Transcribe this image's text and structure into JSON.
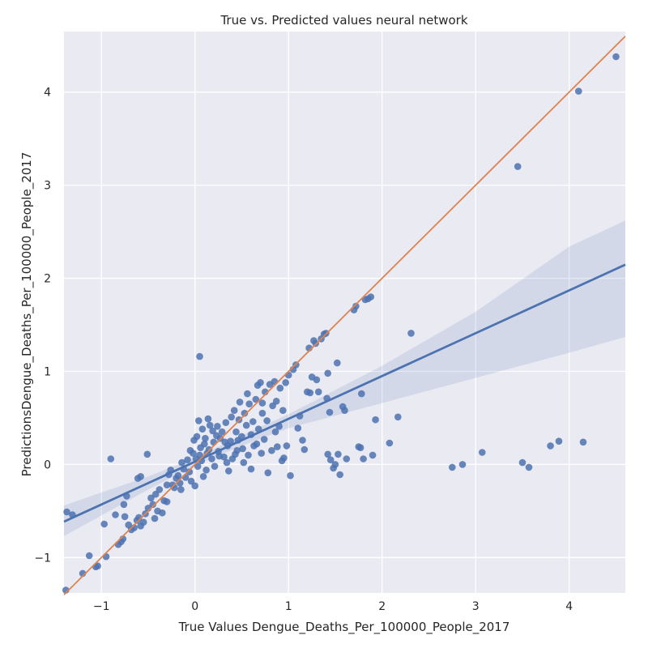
{
  "chart_data": {
    "type": "scatter",
    "title": "True vs. Predicted values neural network",
    "xlabel": "True Values Dengue_Deaths_Per_100000_People_2017",
    "ylabel": "PredictionsDengue_Deaths_Per_100000_People_2017",
    "xlim": [
      -1.4,
      4.6
    ],
    "ylim": [
      -1.38,
      4.65
    ],
    "x_ticks": [
      -1,
      0,
      1,
      2,
      3,
      4
    ],
    "y_ticks": [
      -1,
      0,
      1,
      2,
      3,
      4
    ],
    "x_tick_labels": [
      "−1",
      "0",
      "1",
      "2",
      "3",
      "4"
    ],
    "y_tick_labels": [
      "−1",
      "0",
      "1",
      "2",
      "3",
      "4"
    ],
    "grid": true,
    "background": "#eaeaf2",
    "colors": {
      "points": "#4c72b0",
      "regression": "#4c72b0",
      "ci_band": "#4c72b0",
      "identity": "#dd8452"
    },
    "regression": {
      "slope": 0.46,
      "intercept": 0.03
    },
    "confidence_band": {
      "x": [
        -1.4,
        -0.5,
        0,
        0.5,
        1,
        2,
        3,
        4,
        4.6
      ],
      "lower": [
        -0.77,
        -0.27,
        -0.01,
        0.2,
        0.39,
        0.66,
        0.93,
        1.2,
        1.37
      ],
      "upper": [
        -0.44,
        -0.13,
        0.07,
        0.31,
        0.54,
        1.06,
        1.64,
        2.34,
        2.62
      ]
    },
    "identity_line": [
      [
        -1.4,
        -1.4
      ],
      [
        4.6,
        4.6
      ]
    ],
    "points": [
      [
        -1.38,
        -1.35
      ],
      [
        -1.37,
        -0.51
      ],
      [
        -1.31,
        -0.54
      ],
      [
        -1.2,
        -1.17
      ],
      [
        -1.13,
        -0.98
      ],
      [
        -1.06,
        -1.1
      ],
      [
        -1.04,
        -1.09
      ],
      [
        -0.97,
        -0.64
      ],
      [
        -0.95,
        -0.99
      ],
      [
        -0.9,
        0.06
      ],
      [
        -0.85,
        -0.54
      ],
      [
        -0.82,
        -0.86
      ],
      [
        -0.79,
        -0.83
      ],
      [
        -0.77,
        -0.8
      ],
      [
        -0.76,
        -0.43
      ],
      [
        -0.73,
        -0.34
      ],
      [
        -0.75,
        -0.56
      ],
      [
        -0.71,
        -0.65
      ],
      [
        -0.68,
        -0.7
      ],
      [
        -0.65,
        -0.68
      ],
      [
        -0.62,
        -0.6
      ],
      [
        -0.6,
        -0.57
      ],
      [
        -0.58,
        -0.66
      ],
      [
        -0.55,
        -0.62
      ],
      [
        -0.53,
        -0.53
      ],
      [
        -0.61,
        -0.15
      ],
      [
        -0.58,
        -0.13
      ],
      [
        -0.51,
        0.11
      ],
      [
        -0.5,
        -0.47
      ],
      [
        -0.47,
        -0.36
      ],
      [
        -0.45,
        -0.43
      ],
      [
        -0.42,
        -0.32
      ],
      [
        -0.4,
        -0.5
      ],
      [
        -0.38,
        -0.27
      ],
      [
        -0.35,
        -0.52
      ],
      [
        -0.33,
        -0.39
      ],
      [
        -0.3,
        -0.22
      ],
      [
        -0.28,
        -0.11
      ],
      [
        -0.26,
        -0.06
      ],
      [
        -0.24,
        -0.22
      ],
      [
        -0.22,
        -0.25
      ],
      [
        -0.2,
        -0.15
      ],
      [
        -0.18,
        -0.12
      ],
      [
        -0.16,
        -0.2
      ],
      [
        -0.14,
        0.02
      ],
      [
        -0.12,
        -0.05
      ],
      [
        -0.1,
        -0.14
      ],
      [
        -0.08,
        0.05
      ],
      [
        -0.06,
        -0.08
      ],
      [
        -0.05,
        0.15
      ],
      [
        -0.04,
        -0.18
      ],
      [
        -0.02,
        0.12
      ],
      [
        -0.01,
        0.26
      ],
      [
        0.0,
        -0.23
      ],
      [
        0.01,
        0.06
      ],
      [
        0.02,
        0.3
      ],
      [
        0.03,
        -0.02
      ],
      [
        0.04,
        0.47
      ],
      [
        0.05,
        0.1
      ],
      [
        0.06,
        0.18
      ],
      [
        0.07,
        0.04
      ],
      [
        0.08,
        0.38
      ],
      [
        0.1,
        0.22
      ],
      [
        0.12,
        -0.06
      ],
      [
        0.13,
        0.12
      ],
      [
        0.15,
        0.16
      ],
      [
        0.16,
        0.42
      ],
      [
        0.18,
        0.06
      ],
      [
        0.2,
        0.24
      ],
      [
        0.21,
        -0.02
      ],
      [
        0.23,
        0.31
      ],
      [
        0.25,
        0.14
      ],
      [
        0.27,
        0.28
      ],
      [
        0.29,
        0.35
      ],
      [
        0.31,
        0.08
      ],
      [
        0.33,
        0.45
      ],
      [
        0.35,
        0.2
      ],
      [
        0.36,
        -0.07
      ],
      [
        0.38,
        0.25
      ],
      [
        0.4,
        0.06
      ],
      [
        0.42,
        0.58
      ],
      [
        0.44,
        0.35
      ],
      [
        0.45,
        0.15
      ],
      [
        0.47,
        0.48
      ],
      [
        0.48,
        0.67
      ],
      [
        0.5,
        0.3
      ],
      [
        0.52,
        0.02
      ],
      [
        0.53,
        0.55
      ],
      [
        0.55,
        0.42
      ],
      [
        0.57,
        0.1
      ],
      [
        0.58,
        0.65
      ],
      [
        0.6,
        0.32
      ],
      [
        0.62,
        0.46
      ],
      [
        0.63,
        0.2
      ],
      [
        0.65,
        0.7
      ],
      [
        0.67,
        0.85
      ],
      [
        0.68,
        0.38
      ],
      [
        0.7,
        0.88
      ],
      [
        0.71,
        0.12
      ],
      [
        0.72,
        0.55
      ],
      [
        0.74,
        0.27
      ],
      [
        0.75,
        0.78
      ],
      [
        0.77,
        0.47
      ],
      [
        0.78,
        -0.09
      ],
      [
        0.8,
        0.86
      ],
      [
        0.82,
        0.15
      ],
      [
        0.83,
        0.63
      ],
      [
        0.85,
        0.89
      ],
      [
        0.86,
        0.35
      ],
      [
        0.88,
        0.19
      ],
      [
        0.9,
        0.41
      ],
      [
        0.91,
        0.82
      ],
      [
        0.93,
        0.04
      ],
      [
        0.94,
        0.58
      ],
      [
        0.95,
        0.07
      ],
      [
        0.97,
        0.88
      ],
      [
        1.0,
        0.96
      ],
      [
        0.98,
        0.2
      ],
      [
        1.02,
        -0.12
      ],
      [
        1.05,
        1.02
      ],
      [
        1.08,
        1.07
      ],
      [
        1.1,
        0.39
      ],
      [
        1.12,
        0.52
      ],
      [
        1.15,
        0.26
      ],
      [
        1.17,
        0.16
      ],
      [
        1.2,
        0.78
      ],
      [
        1.22,
        1.25
      ],
      [
        1.23,
        0.77
      ],
      [
        1.25,
        0.94
      ],
      [
        1.27,
        1.33
      ],
      [
        1.29,
        1.3
      ],
      [
        1.3,
        0.91
      ],
      [
        1.32,
        0.78
      ],
      [
        1.35,
        1.35
      ],
      [
        1.38,
        1.4
      ],
      [
        1.4,
        1.41
      ],
      [
        1.41,
        0.71
      ],
      [
        1.42,
        0.98
      ],
      [
        1.44,
        0.56
      ],
      [
        1.42,
        0.11
      ],
      [
        1.45,
        0.05
      ],
      [
        1.48,
        -0.04
      ],
      [
        1.5,
        0.0
      ],
      [
        1.52,
        1.09
      ],
      [
        1.53,
        0.11
      ],
      [
        1.55,
        -0.11
      ],
      [
        1.58,
        0.62
      ],
      [
        1.6,
        0.58
      ],
      [
        1.62,
        0.06
      ],
      [
        1.7,
        1.66
      ],
      [
        1.72,
        1.7
      ],
      [
        1.75,
        0.19
      ],
      [
        1.77,
        0.18
      ],
      [
        1.78,
        0.76
      ],
      [
        1.8,
        0.06
      ],
      [
        1.82,
        1.77
      ],
      [
        1.85,
        1.78
      ],
      [
        1.88,
        1.8
      ],
      [
        1.9,
        0.1
      ],
      [
        1.93,
        0.48
      ],
      [
        2.08,
        0.23
      ],
      [
        2.17,
        0.51
      ],
      [
        2.31,
        1.41
      ],
      [
        2.75,
        -0.03
      ],
      [
        2.86,
        0.0
      ],
      [
        3.07,
        0.13
      ],
      [
        3.45,
        3.2
      ],
      [
        3.5,
        0.02
      ],
      [
        3.57,
        -0.03
      ],
      [
        3.8,
        0.2
      ],
      [
        3.89,
        0.25
      ],
      [
        4.1,
        4.01
      ],
      [
        4.15,
        0.24
      ],
      [
        4.5,
        4.38
      ],
      [
        0.05,
        1.16
      ],
      [
        0.26,
        0.09
      ],
      [
        0.34,
        0.02
      ],
      [
        0.11,
        0.28
      ],
      [
        0.43,
        0.11
      ],
      [
        0.19,
        0.36
      ],
      [
        0.6,
        -0.05
      ],
      [
        0.66,
        0.22
      ],
      [
        0.56,
        0.76
      ],
      [
        0.72,
        0.66
      ],
      [
        0.87,
        0.68
      ],
      [
        0.46,
        0.26
      ],
      [
        0.09,
        -0.13
      ],
      [
        -0.15,
        -0.27
      ],
      [
        -0.3,
        -0.4
      ],
      [
        -0.43,
        -0.58
      ],
      [
        0.14,
        0.49
      ],
      [
        0.24,
        0.41
      ],
      [
        0.32,
        0.24
      ],
      [
        0.39,
        0.51
      ],
      [
        0.51,
        0.17
      ]
    ]
  }
}
